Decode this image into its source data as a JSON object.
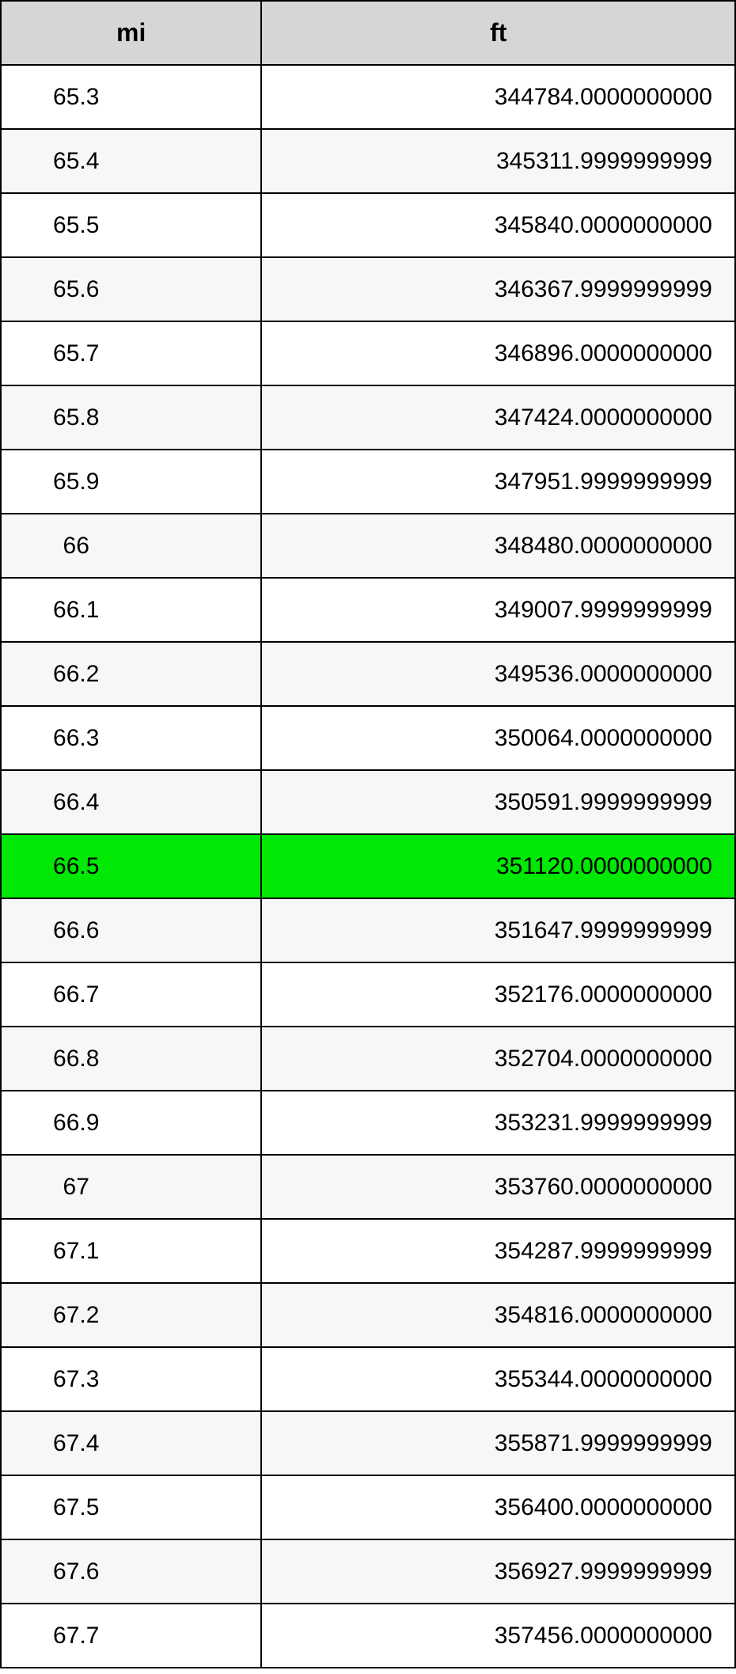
{
  "table": {
    "type": "table",
    "header_bg": "#d6d6d6",
    "row_colors": {
      "even": "#ffffff",
      "odd": "#f7f7f7",
      "highlight": "#00e803"
    },
    "border_color": "#000000",
    "font_family": "Arial",
    "header_fontsize": 32,
    "cell_fontsize": 30,
    "columns": [
      {
        "key": "mi",
        "label": "mi",
        "width_pct": 35.5,
        "align": "center"
      },
      {
        "key": "ft",
        "label": "ft",
        "width_pct": 64.5,
        "align": "right"
      }
    ],
    "highlight_index": 12,
    "rows": [
      {
        "mi": "65.3",
        "ft": "344784.0000000000"
      },
      {
        "mi": "65.4",
        "ft": "345311.9999999999"
      },
      {
        "mi": "65.5",
        "ft": "345840.0000000000"
      },
      {
        "mi": "65.6",
        "ft": "346367.9999999999"
      },
      {
        "mi": "65.7",
        "ft": "346896.0000000000"
      },
      {
        "mi": "65.8",
        "ft": "347424.0000000000"
      },
      {
        "mi": "65.9",
        "ft": "347951.9999999999"
      },
      {
        "mi": "66",
        "ft": "348480.0000000000"
      },
      {
        "mi": "66.1",
        "ft": "349007.9999999999"
      },
      {
        "mi": "66.2",
        "ft": "349536.0000000000"
      },
      {
        "mi": "66.3",
        "ft": "350064.0000000000"
      },
      {
        "mi": "66.4",
        "ft": "350591.9999999999"
      },
      {
        "mi": "66.5",
        "ft": "351120.0000000000"
      },
      {
        "mi": "66.6",
        "ft": "351647.9999999999"
      },
      {
        "mi": "66.7",
        "ft": "352176.0000000000"
      },
      {
        "mi": "66.8",
        "ft": "352704.0000000000"
      },
      {
        "mi": "66.9",
        "ft": "353231.9999999999"
      },
      {
        "mi": "67",
        "ft": "353760.0000000000"
      },
      {
        "mi": "67.1",
        "ft": "354287.9999999999"
      },
      {
        "mi": "67.2",
        "ft": "354816.0000000000"
      },
      {
        "mi": "67.3",
        "ft": "355344.0000000000"
      },
      {
        "mi": "67.4",
        "ft": "355871.9999999999"
      },
      {
        "mi": "67.5",
        "ft": "356400.0000000000"
      },
      {
        "mi": "67.6",
        "ft": "356927.9999999999"
      },
      {
        "mi": "67.7",
        "ft": "357456.0000000000"
      }
    ]
  }
}
